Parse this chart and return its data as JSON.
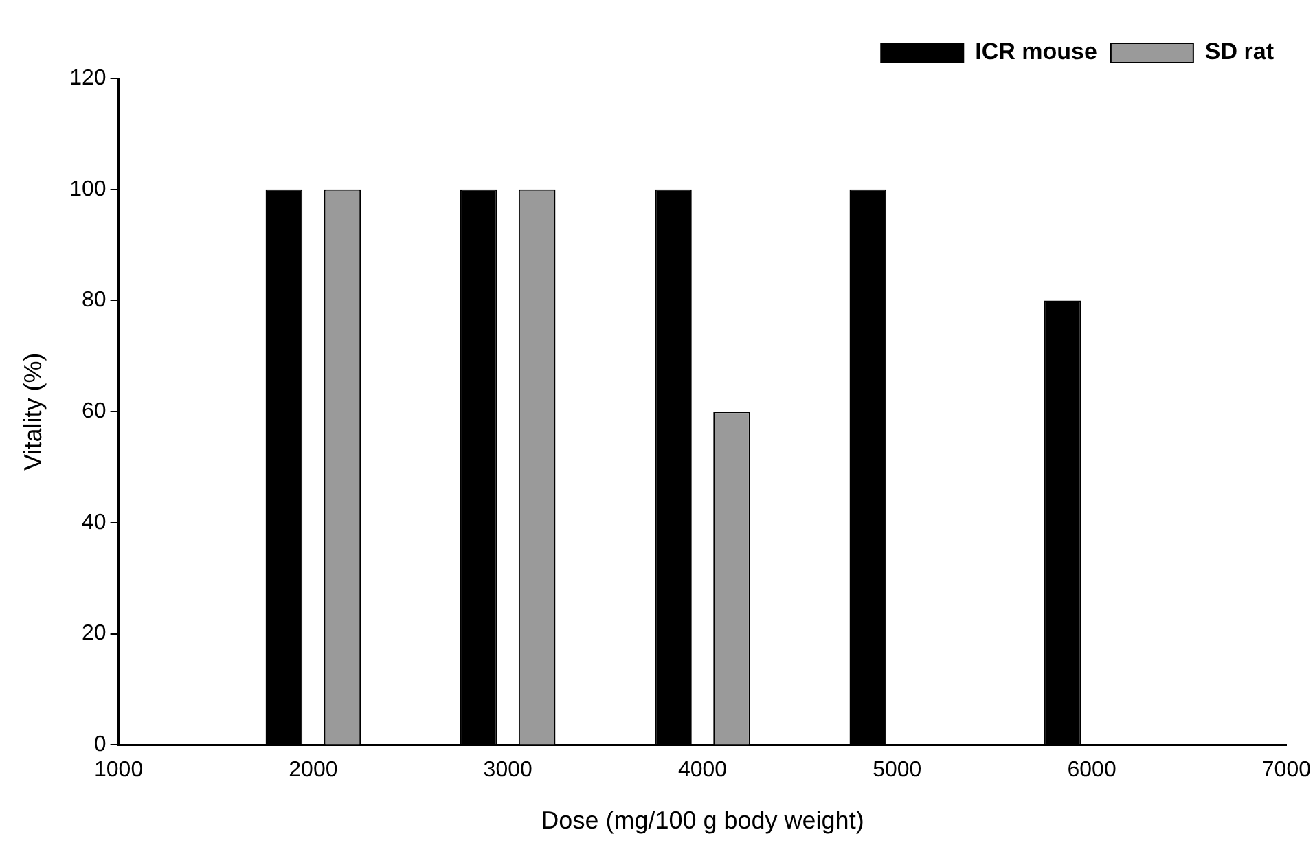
{
  "chart_data": {
    "type": "bar",
    "xlabel": "Dose (mg/100 g body weight)",
    "ylabel": "Vitality (%)",
    "series": [
      {
        "name": "ICR mouse",
        "color": "#000000",
        "x": [
          1850,
          2850,
          3850,
          4850,
          5850
        ],
        "values": [
          100,
          100,
          100,
          100,
          80
        ]
      },
      {
        "name": "SD rat",
        "color": "#9a9a9a",
        "x": [
          2150,
          3150,
          4150
        ],
        "values": [
          100,
          100,
          60
        ]
      }
    ],
    "xlim": [
      1000,
      7000
    ],
    "xticks": [
      1000,
      2000,
      3000,
      4000,
      5000,
      6000,
      7000
    ],
    "ylim": [
      0,
      120
    ],
    "yticks": [
      0,
      20,
      40,
      60,
      80,
      100,
      120
    ],
    "grid": false,
    "legend": "top right"
  }
}
